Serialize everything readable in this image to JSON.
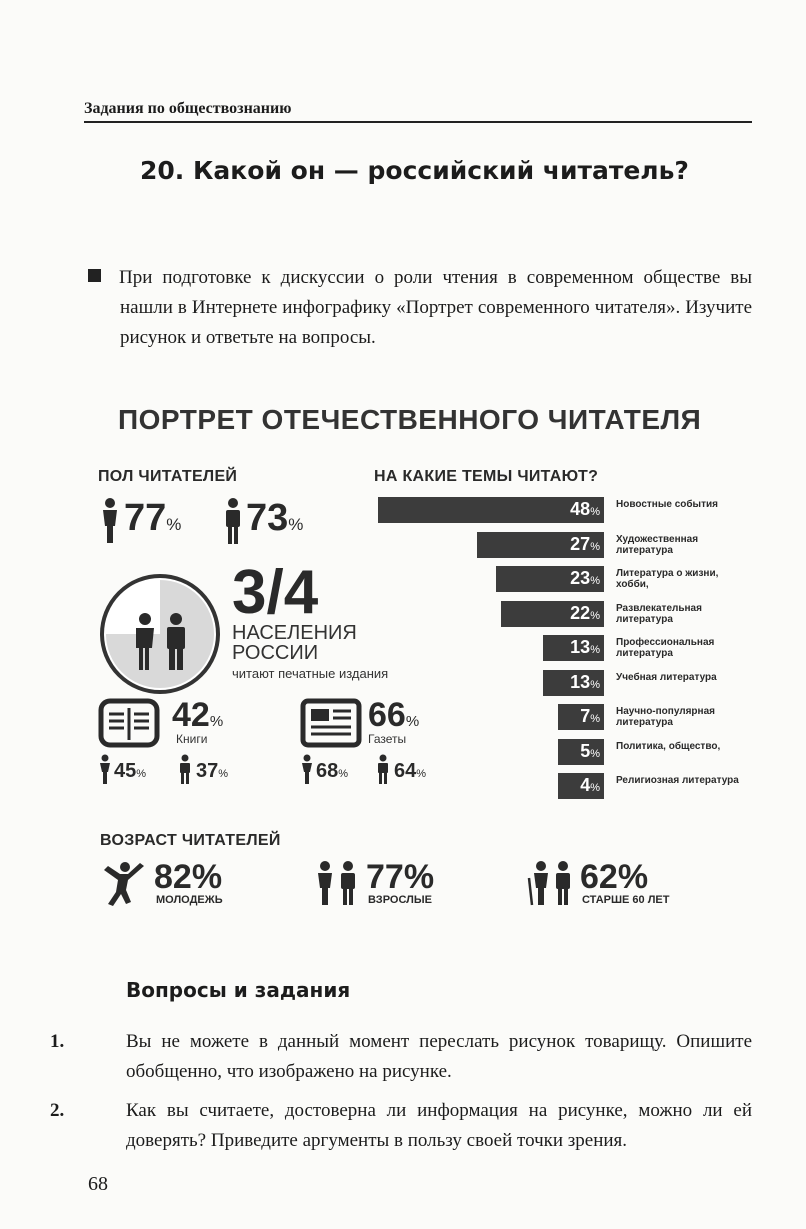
{
  "page": {
    "running_head": "Задания по обществознанию",
    "lesson_title": "20. Какой он — российский читатель?",
    "intro": "При подготовке к дискуссии о роли чтения в современном обществе вы нашли в Интернете инфографику «Портрет современного читателя». Изучите рисунок и ответьте на вопросы.",
    "page_number": "68"
  },
  "infographic": {
    "title": "ПОРТРЕТ ОТЕЧЕСТВЕННОГО ЧИТАТЕЛЯ",
    "gender": {
      "heading": "ПОЛ ЧИТАТЕЛЕЙ",
      "female": "77",
      "male": "73",
      "unit": "%"
    },
    "population": {
      "fraction": "3/4",
      "line1": "НАСЕЛЕНИЯ",
      "line2": "РОССИИ",
      "sub": "читают печатные издания"
    },
    "books": {
      "value": "42",
      "unit": "%",
      "label": "Книги",
      "female": "45",
      "male": "37"
    },
    "papers": {
      "value": "66",
      "unit": "%",
      "label": "Газеты",
      "female": "68",
      "male": "64"
    },
    "age": {
      "heading": "ВОЗРАСТ ЧИТАТЕЛЕЙ",
      "youth": "82%",
      "youth_label": "МОЛОДЕЖЬ",
      "adults": "77%",
      "adults_label": "ВЗРОСЛЫЕ",
      "seniors": "62%",
      "seniors_label": "СТАРШЕ 60 ЛЕТ"
    },
    "colors": {
      "bar": "#3c3c3c",
      "text": "#2a2a2a"
    },
    "chart_data": {
      "type": "bar",
      "title": "НА КАКИЕ ТЕМЫ ЧИТАЮТ?",
      "unit": "%",
      "categories": [
        "Новостные события",
        "Художественная литература",
        "Литература о жизни, хобби,",
        "Развлекательная литература",
        "Профессиональная литература",
        "Учебная литература",
        "Научно-популярная литература",
        "Политика, общество,",
        "Религиозная литература"
      ],
      "values": [
        48,
        27,
        23,
        22,
        13,
        13,
        7,
        5,
        4
      ]
    }
  },
  "questions": {
    "heading": "Вопросы и задания",
    "items": [
      {
        "num": "1.",
        "text": "Вы не можете в данный момент переслать рисунок товарищу. Опишите обобщенно, что изображено на рисунке."
      },
      {
        "num": "2.",
        "text": "Как вы считаете, достоверна ли информация на рисунке, можно ли ей доверять? Приведите аргументы в пользу своей точки зрения."
      }
    ]
  }
}
